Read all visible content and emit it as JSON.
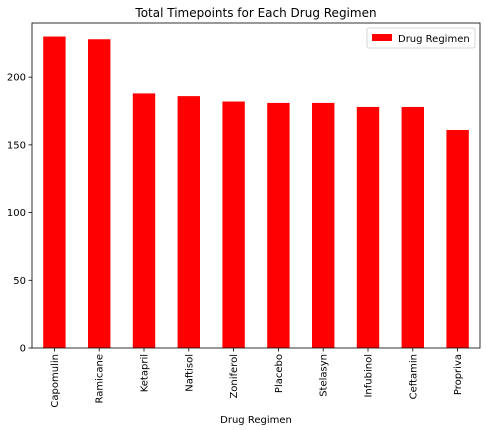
{
  "chart_data": {
    "type": "bar",
    "title": "Total Timepoints for Each Drug Regimen",
    "xlabel": "Drug Regimen",
    "ylabel": "",
    "categories": [
      "Capomulin",
      "Ramicane",
      "Ketapril",
      "Naftisol",
      "Zoniferol",
      "Placebo",
      "Stelasyn",
      "Infubinol",
      "Ceftamin",
      "Propriva"
    ],
    "series": [
      {
        "name": "Drug Regimen",
        "color": "#ff0000",
        "values": [
          230,
          228,
          188,
          186,
          182,
          181,
          181,
          178,
          178,
          161
        ]
      }
    ],
    "ylim": [
      0,
      240
    ],
    "yticks": [
      0,
      50,
      100,
      150,
      200
    ],
    "grid": false,
    "legend_position": "top-right"
  }
}
